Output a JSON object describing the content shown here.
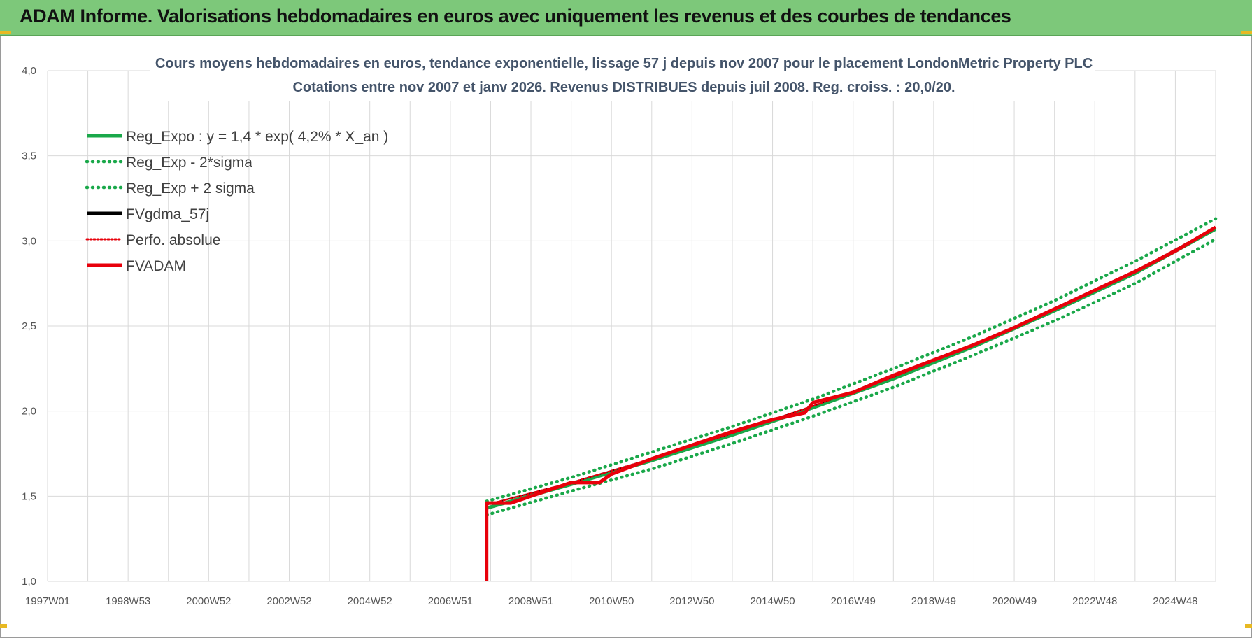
{
  "banner": {
    "title": "ADAM Informe. Valorisations hebdomadaires en euros avec uniquement les revenus et des courbes de tendances"
  },
  "colors": {
    "banner": "#7dc87a",
    "reg_expo": "#1aa84a",
    "fvgdma": "#000000",
    "fvadam": "#e8000b",
    "perfo": "#e8000b",
    "grid": "#d9d9d9"
  },
  "chart_data": {
    "type": "line",
    "title": [
      "Cours moyens hebdomadaires en euros, tendance exponentielle, lissage 57 j depuis nov 2007  pour le placement LondonMetric Property PLC",
      "Cotations entre nov 2007 et janv 2026. Revenus DISTRIBUES depuis juil 2008. Reg. croiss. : 20,0/20."
    ],
    "xlabel": "",
    "ylabel": "",
    "ylim": [
      1.0,
      4.0
    ],
    "y_ticks": [
      "1,0",
      "1,5",
      "2,0",
      "2,5",
      "3,0",
      "3,5",
      "4,0"
    ],
    "xlim": [
      1997.0,
      2026.0
    ],
    "x_ticks": [
      {
        "label": "1997W01",
        "year": 1997.0
      },
      {
        "label": "1998W53",
        "year": 1999.0
      },
      {
        "label": "2000W52",
        "year": 2001.0
      },
      {
        "label": "2002W52",
        "year": 2003.0
      },
      {
        "label": "2004W52",
        "year": 2005.0
      },
      {
        "label": "2006W51",
        "year": 2007.0
      },
      {
        "label": "2008W51",
        "year": 2009.0
      },
      {
        "label": "2010W50",
        "year": 2011.0
      },
      {
        "label": "2012W50",
        "year": 2013.0
      },
      {
        "label": "2014W50",
        "year": 2015.0
      },
      {
        "label": "2016W49",
        "year": 2017.0
      },
      {
        "label": "2018W49",
        "year": 2019.0
      },
      {
        "label": "2020W49",
        "year": 2021.0
      },
      {
        "label": "2022W48",
        "year": 2023.0
      },
      {
        "label": "2024W48",
        "year": 2025.0
      }
    ],
    "grid": true,
    "legend_position": "top-left",
    "series": [
      {
        "name": "Reg_Expo : y = 1,4 * exp( 4,2% *  X_an )",
        "style": "solid",
        "color": "#1aa84a",
        "points": [
          [
            2007.9,
            1.43
          ],
          [
            2010,
            1.57
          ],
          [
            2012,
            1.71
          ],
          [
            2014,
            1.86
          ],
          [
            2016,
            2.02
          ],
          [
            2018,
            2.19
          ],
          [
            2020,
            2.38
          ],
          [
            2022,
            2.59
          ],
          [
            2024,
            2.81
          ],
          [
            2026,
            3.07
          ]
        ]
      },
      {
        "name": "Reg_Exp - 2*sigma",
        "style": "dotted",
        "color": "#1aa84a",
        "points": [
          [
            2007.9,
            1.39
          ],
          [
            2010,
            1.53
          ],
          [
            2012,
            1.66
          ],
          [
            2014,
            1.81
          ],
          [
            2016,
            1.97
          ],
          [
            2018,
            2.14
          ],
          [
            2020,
            2.33
          ],
          [
            2022,
            2.53
          ],
          [
            2024,
            2.75
          ],
          [
            2026,
            3.01
          ]
        ]
      },
      {
        "name": "Reg_Exp + 2 sigma",
        "style": "dotted",
        "color": "#1aa84a",
        "points": [
          [
            2007.9,
            1.47
          ],
          [
            2010,
            1.61
          ],
          [
            2012,
            1.76
          ],
          [
            2014,
            1.91
          ],
          [
            2016,
            2.07
          ],
          [
            2018,
            2.25
          ],
          [
            2020,
            2.44
          ],
          [
            2022,
            2.65
          ],
          [
            2024,
            2.88
          ],
          [
            2026,
            3.13
          ]
        ]
      },
      {
        "name": "FVgdma_57j",
        "style": "solid",
        "color": "#000000",
        "points": [
          [
            2007.9,
            1.45
          ],
          [
            2010,
            1.58
          ],
          [
            2012,
            1.72
          ],
          [
            2014,
            1.87
          ],
          [
            2016,
            2.03
          ],
          [
            2018,
            2.2
          ],
          [
            2020,
            2.39
          ],
          [
            2022,
            2.6
          ],
          [
            2024,
            2.82
          ],
          [
            2026,
            3.08
          ]
        ]
      },
      {
        "name": "Perfo. absolue",
        "style": "dotted",
        "color": "#e8000b",
        "points": [
          [
            2007.9,
            1.45
          ],
          [
            2010,
            1.58
          ],
          [
            2012,
            1.72
          ],
          [
            2014,
            1.87
          ],
          [
            2016,
            2.03
          ],
          [
            2018,
            2.2
          ],
          [
            2020,
            2.39
          ],
          [
            2022,
            2.6
          ],
          [
            2024,
            2.82
          ],
          [
            2026,
            3.08
          ]
        ]
      },
      {
        "name": "FVADAM",
        "style": "solid",
        "color": "#e8000b",
        "points": [
          [
            2007.9,
            1.0
          ],
          [
            2007.9,
            1.46
          ],
          [
            2008.5,
            1.46
          ],
          [
            2009,
            1.5
          ],
          [
            2010,
            1.58
          ],
          [
            2010.7,
            1.58
          ],
          [
            2011,
            1.63
          ],
          [
            2012,
            1.72
          ],
          [
            2013,
            1.8
          ],
          [
            2014,
            1.88
          ],
          [
            2015,
            1.95
          ],
          [
            2015.8,
            1.99
          ],
          [
            2016,
            2.05
          ],
          [
            2017,
            2.11
          ],
          [
            2018,
            2.21
          ],
          [
            2019,
            2.3
          ],
          [
            2020,
            2.39
          ],
          [
            2021,
            2.49
          ],
          [
            2022,
            2.6
          ],
          [
            2023,
            2.71
          ],
          [
            2024,
            2.82
          ],
          [
            2025,
            2.94
          ],
          [
            2026,
            3.08
          ]
        ]
      }
    ]
  }
}
